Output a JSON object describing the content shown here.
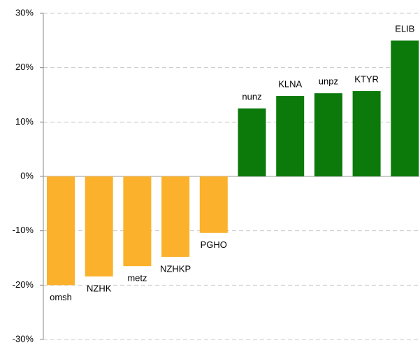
{
  "chart_data": {
    "type": "bar",
    "categories": [
      "omsh",
      "NZHK",
      "metz",
      "NZHKP",
      "PGHO",
      "nunz",
      "KLNA",
      "unpz",
      "KTYR",
      "ELIB"
    ],
    "values": [
      -20.0,
      -18.4,
      -16.5,
      -14.8,
      -10.4,
      12.5,
      14.8,
      15.3,
      15.7,
      25.0
    ],
    "colors": [
      "#fbb12b",
      "#fbb12b",
      "#fbb12b",
      "#fbb12b",
      "#fbb12b",
      "#0b7a0b",
      "#0b7a0b",
      "#0b7a0b",
      "#0b7a0b",
      "#0b7a0b"
    ],
    "ylim": [
      -30,
      30
    ],
    "yticks": [
      {
        "value": -30,
        "label": "-30%"
      },
      {
        "value": -20,
        "label": "-20%"
      },
      {
        "value": -10,
        "label": "-10%"
      },
      {
        "value": 0,
        "label": "0%"
      },
      {
        "value": 10,
        "label": "10%"
      },
      {
        "value": 20,
        "label": "20%"
      },
      {
        "value": 30,
        "label": "30%"
      }
    ],
    "grid": true
  }
}
